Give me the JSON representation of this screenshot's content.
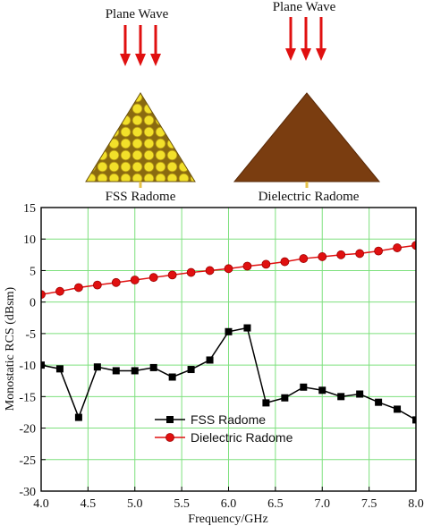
{
  "illustration": {
    "left_panel": {
      "wave_label": "Plane Wave",
      "radome_label": "FSS Radome"
    },
    "right_panel": {
      "wave_label": "Plane Wave",
      "radome_label": "Dielectric Radome"
    },
    "colors": {
      "arrow": "#e01010",
      "fss_base": "#8a6a10",
      "fss_patch": "#f2e02a",
      "dielectric": "#7a3d10"
    }
  },
  "chart_data": {
    "type": "line",
    "title": "",
    "xlabel": "Frequency/GHz",
    "ylabel": "Monostatic RCS (dBsm)",
    "xlim": [
      4.0,
      8.0
    ],
    "ylim": [
      -30,
      15
    ],
    "xticks": [
      "4.0",
      "4.5",
      "5.0",
      "5.5",
      "6.0",
      "6.5",
      "7.0",
      "7.5",
      "8.0"
    ],
    "yticks": [
      "15",
      "10",
      "5",
      "0",
      "-5",
      "-10",
      "-15",
      "-20",
      "-25",
      "-30"
    ],
    "grid": true,
    "grid_color": "#7ee07e",
    "legend_position": "lower-center",
    "series": [
      {
        "name": "FSS Radome",
        "color": "#000000",
        "marker": "square",
        "x": [
          4.0,
          4.2,
          4.4,
          4.6,
          4.8,
          5.0,
          5.2,
          5.4,
          5.6,
          5.8,
          6.0,
          6.2,
          6.4,
          6.6,
          6.8,
          7.0,
          7.2,
          7.4,
          7.6,
          7.8,
          8.0
        ],
        "y": [
          -10.0,
          -10.6,
          -18.3,
          -10.3,
          -10.9,
          -10.9,
          -10.4,
          -11.9,
          -10.7,
          -9.2,
          -4.7,
          -4.1,
          -16.0,
          -15.2,
          -13.5,
          -14.0,
          -15.0,
          -14.6,
          -15.9,
          -17.0,
          -18.7
        ]
      },
      {
        "name": "Dielectric Radome",
        "color": "#e01010",
        "marker": "circle",
        "x": [
          4.0,
          4.2,
          4.4,
          4.6,
          4.8,
          5.0,
          5.2,
          5.4,
          5.6,
          5.8,
          6.0,
          6.2,
          6.4,
          6.6,
          6.8,
          7.0,
          7.2,
          7.4,
          7.6,
          7.8,
          8.0
        ],
        "y": [
          1.2,
          1.7,
          2.3,
          2.7,
          3.1,
          3.5,
          3.9,
          4.3,
          4.7,
          5.0,
          5.3,
          5.7,
          6.0,
          6.4,
          6.9,
          7.2,
          7.5,
          7.7,
          8.1,
          8.6,
          9.0
        ]
      }
    ]
  }
}
